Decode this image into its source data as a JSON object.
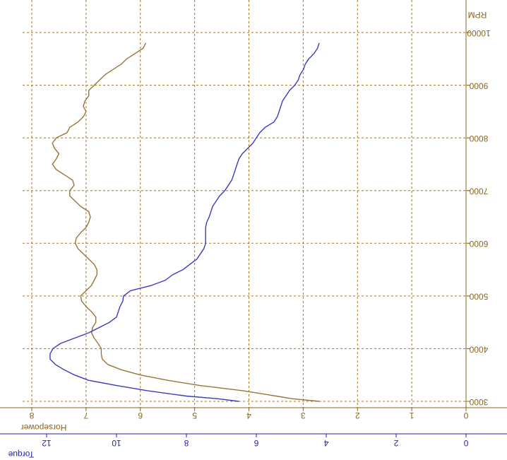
{
  "chart_data": {
    "type": "line",
    "orientation": "rotated",
    "x_axis": {
      "label": "RPM",
      "range": [
        3000,
        10000
      ],
      "ticks": [
        "3000",
        "4000",
        "5000",
        "6000",
        "7000",
        "8000",
        "9000",
        "10000"
      ],
      "color": "#8a6420"
    },
    "y_axes": [
      {
        "label": "Horsepower",
        "range": [
          0,
          8
        ],
        "ticks": [
          "0",
          "1",
          "2",
          "3",
          "4",
          "5",
          "6",
          "7",
          "8"
        ],
        "color": "#8a6420"
      },
      {
        "label": "Torque",
        "range": [
          0,
          12
        ],
        "ticks": [
          "0",
          "2",
          "4",
          "6",
          "8",
          "10",
          "12"
        ],
        "color": "#2222aa"
      }
    ],
    "grid": true,
    "grid_style": "dashed",
    "series": [
      {
        "name": "Horsepower",
        "axis": 0,
        "color": "#9a7438",
        "x": [
          3000,
          3050,
          3100,
          3200,
          3300,
          3400,
          3500,
          3600,
          3700,
          3800,
          3900,
          4000,
          4100,
          4200,
          4300,
          4400,
          4500,
          4600,
          4700,
          4800,
          4900,
          5000,
          5100,
          5200,
          5300,
          5400,
          5500,
          5600,
          5700,
          5800,
          5900,
          6000,
          6100,
          6200,
          6300,
          6400,
          6500,
          6600,
          6700,
          6800,
          6900,
          7000,
          7100,
          7200,
          7300,
          7400,
          7500,
          7600,
          7700,
          7800,
          7900,
          8000,
          8100,
          8200,
          8300,
          8400,
          8500,
          8600,
          8700,
          8800,
          8900,
          9000,
          9100,
          9200,
          9300,
          9400,
          9500,
          9600,
          9700,
          9800
        ],
        "values": [
          2.7,
          3.2,
          3.5,
          4.1,
          4.9,
          5.5,
          6.0,
          6.35,
          6.6,
          6.7,
          6.72,
          6.72,
          6.78,
          6.85,
          6.9,
          6.88,
          6.82,
          6.82,
          6.9,
          7.0,
          7.08,
          7.1,
          7.0,
          6.9,
          6.85,
          6.8,
          6.8,
          6.85,
          6.95,
          7.05,
          7.15,
          7.2,
          7.18,
          7.1,
          7.0,
          6.95,
          6.92,
          6.95,
          7.1,
          7.2,
          7.3,
          7.3,
          7.22,
          7.25,
          7.4,
          7.55,
          7.62,
          7.55,
          7.5,
          7.58,
          7.62,
          7.55,
          7.35,
          7.3,
          7.15,
          7.05,
          7.0,
          7.05,
          7.02,
          6.95,
          6.95,
          6.85,
          6.75,
          6.65,
          6.5,
          6.35,
          6.25,
          6.1,
          5.95,
          5.9
        ]
      },
      {
        "name": "Torque",
        "axis": 1,
        "color": "#3a3abf",
        "x": [
          3000,
          3050,
          3100,
          3200,
          3300,
          3400,
          3500,
          3600,
          3700,
          3800,
          3900,
          4000,
          4100,
          4200,
          4300,
          4400,
          4500,
          4600,
          4700,
          4800,
          4900,
          5000,
          5100,
          5200,
          5300,
          5400,
          5500,
          5600,
          5700,
          5800,
          5900,
          6000,
          6100,
          6200,
          6300,
          6400,
          6500,
          6600,
          6700,
          6800,
          6900,
          7000,
          7100,
          7200,
          7300,
          7400,
          7500,
          7600,
          7700,
          7800,
          7900,
          8000,
          8100,
          8200,
          8300,
          8400,
          8500,
          8600,
          8700,
          8800,
          8900,
          9000,
          9100,
          9200,
          9300,
          9400,
          9500,
          9600,
          9700,
          9800
        ],
        "values": [
          6.5,
          7.1,
          8.0,
          9.1,
          10.0,
          10.8,
          11.2,
          11.5,
          11.75,
          11.9,
          11.9,
          11.82,
          11.6,
          11.2,
          10.8,
          10.5,
          10.2,
          10.0,
          9.95,
          9.9,
          9.82,
          9.8,
          9.6,
          9.0,
          8.6,
          8.4,
          8.1,
          7.9,
          7.7,
          7.6,
          7.5,
          7.45,
          7.45,
          7.45,
          7.45,
          7.42,
          7.35,
          7.3,
          7.25,
          7.15,
          7.05,
          6.9,
          6.8,
          6.7,
          6.65,
          6.6,
          6.55,
          6.5,
          6.4,
          6.25,
          6.1,
          6.0,
          5.9,
          5.75,
          5.5,
          5.4,
          5.35,
          5.3,
          5.25,
          5.15,
          5.05,
          4.9,
          4.8,
          4.75,
          4.65,
          4.6,
          4.5,
          4.35,
          4.25,
          4.2
        ]
      }
    ]
  }
}
